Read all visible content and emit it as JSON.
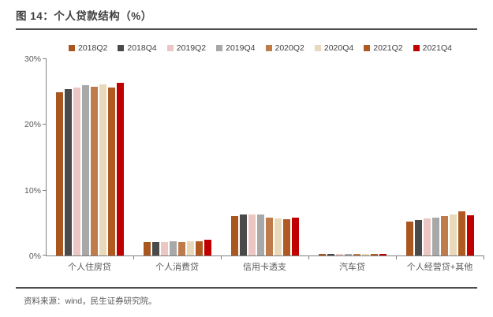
{
  "page": {
    "title": "图 14：个人贷款结构（%）",
    "source": "资料来源：wind，民生证券研究院。"
  },
  "chart_data": {
    "type": "bar",
    "title": "个人贷款结构（%）",
    "xlabel": "",
    "ylabel": "",
    "ylim": [
      0,
      30
    ],
    "grid": false,
    "legend_position": "top",
    "yticks": [
      {
        "label": "0%",
        "value": 0
      },
      {
        "label": "10%",
        "value": 10
      },
      {
        "label": "20%",
        "value": 20
      },
      {
        "label": "30%",
        "value": 30
      }
    ],
    "categories": [
      "个人住房贷",
      "个人消费贷",
      "信用卡透支",
      "汽车贷",
      "个人经营贷+其他"
    ],
    "series": [
      {
        "name": "2018Q2",
        "color": "#A9561F",
        "values": [
          24.9,
          2.0,
          6.0,
          0.2,
          5.2
        ]
      },
      {
        "name": "2018Q4",
        "color": "#4A4A4A",
        "values": [
          25.3,
          2.1,
          6.2,
          0.2,
          5.4
        ]
      },
      {
        "name": "2019Q2",
        "color": "#EBC6C3",
        "values": [
          25.6,
          2.1,
          6.3,
          0.2,
          5.6
        ]
      },
      {
        "name": "2019Q4",
        "color": "#A8A8A8",
        "values": [
          25.9,
          2.2,
          6.3,
          0.2,
          5.8
        ]
      },
      {
        "name": "2020Q2",
        "color": "#BF7B49",
        "values": [
          25.7,
          2.1,
          5.8,
          0.2,
          6.0
        ]
      },
      {
        "name": "2020Q4",
        "color": "#E8D9BB",
        "values": [
          26.1,
          2.2,
          5.7,
          0.2,
          6.3
        ]
      },
      {
        "name": "2021Q2",
        "color": "#B05A21",
        "values": [
          25.6,
          2.2,
          5.5,
          0.2,
          6.7
        ]
      },
      {
        "name": "2021Q4",
        "color": "#C00000",
        "values": [
          26.3,
          2.4,
          5.8,
          0.3,
          6.1
        ]
      }
    ]
  }
}
